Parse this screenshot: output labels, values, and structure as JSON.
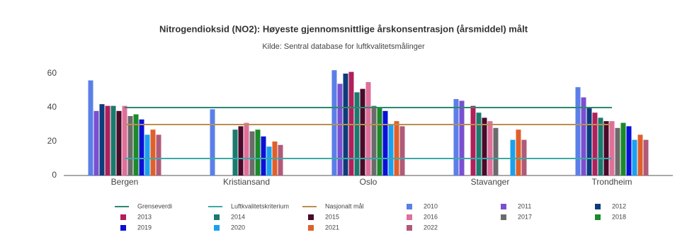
{
  "chart_data": {
    "type": "bar",
    "title": "Nitrogendioksid (NO2): Høyeste gjennomsnittlige årskonsentrasjon (årsmiddel) målt",
    "subtitle": "Kilde:  Sentral database for luftkvalitetsmålinger",
    "categories": [
      "Bergen",
      "Kristiansand",
      "Oslo",
      "Stavanger",
      "Trondheim"
    ],
    "ylim": [
      0,
      65
    ],
    "yticks": [
      0,
      20,
      40,
      60
    ],
    "lines": [
      {
        "name": "Grenseverdi",
        "color": "#2a8a70",
        "value": 40
      },
      {
        "name": "Luftkvalitetskriterium",
        "color": "#3aaaa8",
        "value": 10
      },
      {
        "name": "Nasjonalt mål",
        "color": "#b89050",
        "value": 30
      }
    ],
    "series": [
      {
        "name": "2010",
        "color": "#5b7fe8",
        "values": [
          56,
          39,
          62,
          45,
          52
        ]
      },
      {
        "name": "2011",
        "color": "#7a4fd0",
        "values": [
          38,
          null,
          54,
          44,
          46
        ]
      },
      {
        "name": "2012",
        "color": "#0d3c7a",
        "values": [
          42,
          null,
          60,
          null,
          40
        ]
      },
      {
        "name": "2013",
        "color": "#b0205a",
        "values": [
          41,
          null,
          61,
          41,
          37
        ]
      },
      {
        "name": "2014",
        "color": "#1a7a6e",
        "values": [
          41,
          27,
          49,
          37,
          34
        ]
      },
      {
        "name": "2015",
        "color": "#4a0a2a",
        "values": [
          38,
          29,
          51,
          34,
          32
        ]
      },
      {
        "name": "2016",
        "color": "#e06f9a",
        "values": [
          41,
          31,
          55,
          32,
          32
        ]
      },
      {
        "name": "2017",
        "color": "#6b6b6b",
        "values": [
          35,
          26,
          41,
          28,
          28
        ]
      },
      {
        "name": "2018",
        "color": "#1a8a2a",
        "values": [
          36,
          27,
          40,
          null,
          31
        ]
      },
      {
        "name": "2019",
        "color": "#0a10d8",
        "values": [
          33,
          23,
          38,
          null,
          29
        ]
      },
      {
        "name": "2020",
        "color": "#1aa0f0",
        "values": [
          24,
          17,
          30,
          21,
          21
        ]
      },
      {
        "name": "2021",
        "color": "#e0602a",
        "values": [
          27,
          20,
          32,
          27,
          24
        ]
      },
      {
        "name": "2022",
        "color": "#b05a78",
        "values": [
          24,
          18,
          29,
          21,
          21
        ]
      }
    ]
  }
}
